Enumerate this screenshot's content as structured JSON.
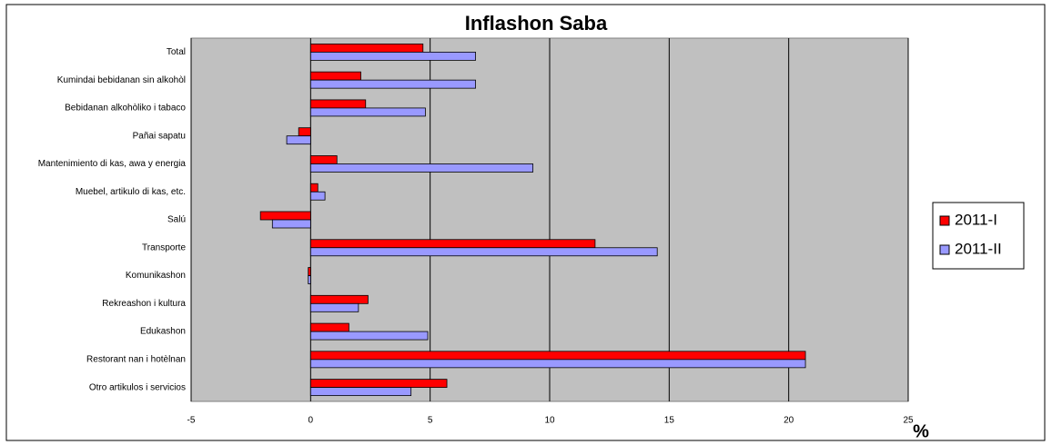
{
  "chart_data": {
    "type": "hbar",
    "title": "Inflashon Saba",
    "xlabel": "%",
    "categories": [
      "Total",
      "Kumindai bebidanan sin alkohòl",
      "Bebidanan alkohòliko i tabaco",
      "Pañai sapatu",
      "Mantenimiento di kas, awa y energia",
      "Muebel, artikulo di kas, etc.",
      "Salú",
      "Transporte",
      "Komunikashon",
      "Rekreashon i kultura",
      "Edukashon",
      "Restorant nan i hotèlnan",
      "Otro artikulos i servicios"
    ],
    "series": [
      {
        "name": "2011-I",
        "color": "#ff0000",
        "values": [
          4.7,
          2.1,
          2.3,
          -0.5,
          1.1,
          0.3,
          -2.1,
          11.9,
          -0.1,
          2.4,
          1.6,
          20.7,
          5.7
        ]
      },
      {
        "name": "2011-II",
        "color": "#9999ff",
        "values": [
          6.9,
          6.9,
          4.8,
          -1.0,
          9.3,
          0.6,
          -1.6,
          14.5,
          -0.1,
          2.0,
          4.9,
          20.7,
          4.2
        ]
      }
    ],
    "xlim": [
      -5,
      25
    ],
    "xticks": [
      -5,
      0,
      5,
      10,
      15,
      20,
      25
    ],
    "grid": true,
    "legend": "right",
    "plot_background": "#c0c0c0"
  }
}
